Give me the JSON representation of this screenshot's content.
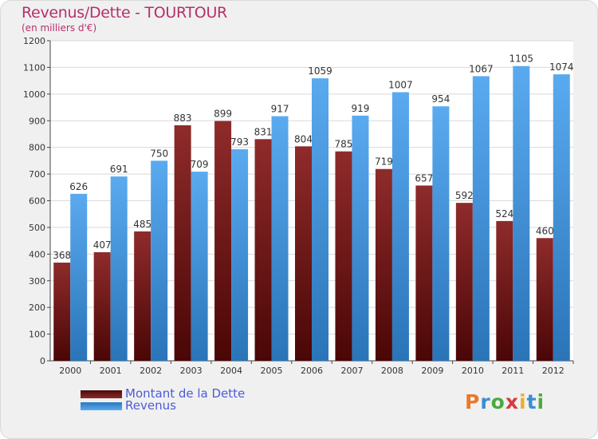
{
  "chart_data": {
    "type": "bar",
    "title": "Revenus/Dette - TOURTOUR",
    "subtitle": "(en milliers d'€)",
    "categories": [
      "2000",
      "2001",
      "2002",
      "2003",
      "2004",
      "2005",
      "2006",
      "2007",
      "2008",
      "2009",
      "2010",
      "2011",
      "2012"
    ],
    "series": [
      {
        "name": "Montant de la Dette",
        "color": "#7b1d1d",
        "values": [
          368,
          407,
          485,
          883,
          899,
          831,
          804,
          785,
          719,
          657,
          592,
          524,
          460
        ]
      },
      {
        "name": "Revenus",
        "color": "#3d94de",
        "values": [
          626,
          691,
          750,
          709,
          793,
          917,
          1059,
          919,
          1007,
          954,
          1067,
          1105,
          1074
        ]
      }
    ],
    "yticks": [
      "0",
      "100",
      "200",
      "300",
      "400",
      "500",
      "600",
      "700",
      "800",
      "900",
      "1000",
      "1100",
      "1200"
    ],
    "ylim": [
      0,
      1200
    ],
    "grid": true,
    "legend": "bottom-left"
  },
  "logo": {
    "text": "Proxiti",
    "letters": [
      "P",
      "r",
      "o",
      "x",
      "i",
      "t",
      "i"
    ],
    "colors": [
      "#e8792a",
      "#3b8dd3",
      "#4caa3c",
      "#d63a3a",
      "#e8b02a",
      "#3b8dd3",
      "#4caa3c"
    ]
  }
}
